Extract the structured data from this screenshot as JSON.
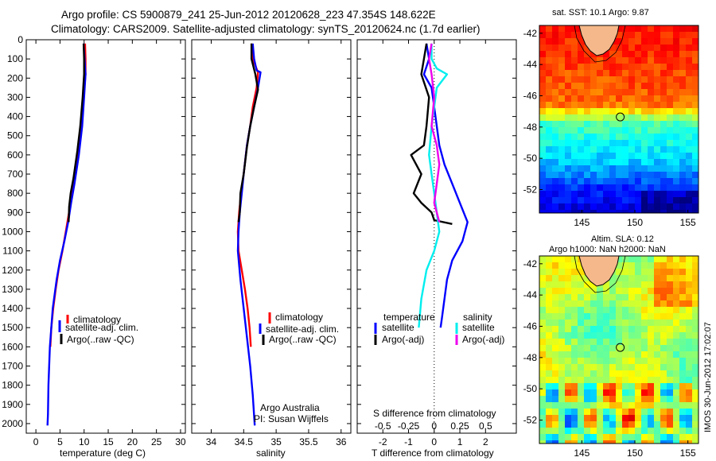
{
  "header": {
    "line1": "Argo profile: CS 5900879_241 25-Jun-2012 20120628_223 47.354S 148.622E",
    "line2": "Climatology: CARS2009. Satellite-adjusted climatology: synTS_20120624.nc (1.7d earlier)"
  },
  "legend_labels": {
    "climatology": "climatology",
    "satellite_adj": "satellite-adj. clim.",
    "argo_raw": "Argo(..raw -QC)",
    "temperature": "temperature",
    "salinity": "salinity",
    "satellite": "satellite",
    "argo_adj": "Argo(-adj)"
  },
  "credits": {
    "line1": "Argo Australia",
    "line2": "PI: Susan Wijffels"
  },
  "map_titles": {
    "sst": "sat. SST: 10.1 Argo: 9.87",
    "sla_line1": "Altim. SLA: 0.12",
    "sla_line2": "Argo h1000: NaN h2000: NaN"
  },
  "timestamp": "IMOS 30-Jun-2012 17:02:07",
  "colors": {
    "climatology": "#ff0000",
    "satellite": "#0000ff",
    "argo": "#000000",
    "sal_satellite": "#00eeee",
    "sal_argo": "#ee00ee",
    "land": "#f5b88a"
  },
  "chart_data": [
    {
      "type": "line",
      "xlabel": "temperature (deg C)",
      "xlim": [
        -2,
        31
      ],
      "ylim": [
        2050,
        0
      ],
      "y_reversed": true,
      "xticks": [
        0,
        5,
        10,
        15,
        20,
        25,
        30
      ],
      "yticks": [
        0,
        100,
        200,
        300,
        400,
        500,
        600,
        700,
        800,
        900,
        1000,
        1100,
        1200,
        1300,
        1400,
        1500,
        1600,
        1700,
        1800,
        1900,
        2000
      ],
      "legend_placement": "lower-right",
      "series": [
        {
          "name": "climatology",
          "color": "#ff0000",
          "points": [
            [
              10.2,
              20
            ],
            [
              10.3,
              100
            ],
            [
              10.3,
              180
            ],
            [
              9.9,
              300
            ],
            [
              9.4,
              450
            ],
            [
              8.7,
              600
            ],
            [
              7.9,
              750
            ],
            [
              7.2,
              850
            ],
            [
              6.2,
              1000
            ],
            [
              5.5,
              1100
            ],
            [
              4.7,
              1200
            ],
            [
              4.1,
              1300
            ],
            [
              3.6,
              1400
            ],
            [
              3.2,
              1500
            ],
            [
              3.0,
              1600
            ]
          ]
        },
        {
          "name": "satellite-adj. clim.",
          "color": "#0000ff",
          "points": [
            [
              9.9,
              20
            ],
            [
              10.1,
              100
            ],
            [
              10.3,
              180
            ],
            [
              10.0,
              300
            ],
            [
              9.6,
              450
            ],
            [
              8.9,
              600
            ],
            [
              8.0,
              750
            ],
            [
              7.3,
              850
            ],
            [
              6.7,
              950
            ],
            [
              5.9,
              1050
            ],
            [
              5.0,
              1150
            ],
            [
              4.3,
              1250
            ],
            [
              3.5,
              1400
            ],
            [
              2.9,
              1600
            ],
            [
              2.6,
              1800
            ],
            [
              2.5,
              1950
            ],
            [
              2.4,
              2010
            ]
          ]
        },
        {
          "name": "Argo(..raw -QC)",
          "color": "#000000",
          "points": [
            [
              9.9,
              20
            ],
            [
              10.0,
              100
            ],
            [
              10.0,
              180
            ],
            [
              9.7,
              300
            ],
            [
              9.2,
              450
            ],
            [
              8.6,
              580
            ],
            [
              7.8,
              720
            ],
            [
              7.5,
              760
            ],
            [
              7.2,
              800
            ],
            [
              6.9,
              870
            ],
            [
              6.8,
              950
            ]
          ]
        }
      ]
    },
    {
      "type": "line",
      "xlabel": "salinity",
      "xlim": [
        33.7,
        36.15
      ],
      "ylim": [
        2050,
        0
      ],
      "y_reversed": true,
      "xticks": [
        34,
        34.5,
        35,
        35.5,
        36
      ],
      "legend_placement": "lower-right",
      "series": [
        {
          "name": "climatology",
          "color": "#ff0000",
          "points": [
            [
              34.62,
              20
            ],
            [
              34.64,
              100
            ],
            [
              34.72,
              170
            ],
            [
              34.7,
              250
            ],
            [
              34.64,
              350
            ],
            [
              34.6,
              450
            ],
            [
              34.55,
              550
            ],
            [
              34.5,
              700
            ],
            [
              34.46,
              800
            ],
            [
              34.43,
              900
            ],
            [
              34.41,
              1000
            ],
            [
              34.42,
              1100
            ],
            [
              34.47,
              1200
            ],
            [
              34.52,
              1300
            ],
            [
              34.56,
              1400
            ],
            [
              34.59,
              1500
            ],
            [
              34.61,
              1600
            ]
          ]
        },
        {
          "name": "satellite-adj. clim.",
          "color": "#0000ff",
          "points": [
            [
              34.64,
              20
            ],
            [
              34.66,
              100
            ],
            [
              34.7,
              160
            ],
            [
              34.76,
              170
            ],
            [
              34.72,
              250
            ],
            [
              34.66,
              350
            ],
            [
              34.6,
              450
            ],
            [
              34.55,
              550
            ],
            [
              34.5,
              700
            ],
            [
              34.47,
              800
            ],
            [
              34.44,
              900
            ],
            [
              34.42,
              1000
            ],
            [
              34.41,
              1100
            ],
            [
              34.45,
              1250
            ],
            [
              34.5,
              1400
            ],
            [
              34.55,
              1550
            ],
            [
              34.6,
              1700
            ],
            [
              34.64,
              1850
            ],
            [
              34.67,
              2010
            ]
          ]
        },
        {
          "name": "Argo(..raw -QC)",
          "color": "#000000",
          "points": [
            [
              34.62,
              20
            ],
            [
              34.62,
              100
            ],
            [
              34.68,
              180
            ],
            [
              34.72,
              260
            ],
            [
              34.66,
              350
            ],
            [
              34.6,
              450
            ],
            [
              34.55,
              560
            ],
            [
              34.5,
              700
            ],
            [
              34.45,
              800
            ],
            [
              34.44,
              900
            ],
            [
              34.42,
              950
            ]
          ]
        }
      ]
    },
    {
      "type": "line",
      "xlabel": "T difference from climatology",
      "xlabel2": "S difference from climatology",
      "xlim": [
        -3,
        3.2
      ],
      "ylim": [
        2050,
        0
      ],
      "y_reversed": true,
      "xticks": [
        -2,
        -1,
        0,
        1,
        2
      ],
      "xticks_s_positions": [
        -2,
        -1,
        0,
        1,
        2
      ],
      "xticks_s_labels": [
        "-0.5",
        "-0.25",
        "0",
        "0.25",
        "0.5"
      ],
      "zero_line": "dotted",
      "legend_placement": "lower-right",
      "series": [
        {
          "name": "temperature satellite",
          "color": "#0000ff",
          "points": [
            [
              -0.3,
              20
            ],
            [
              -0.2,
              100
            ],
            [
              -0.4,
              180
            ],
            [
              -0.1,
              250
            ],
            [
              0.0,
              350
            ],
            [
              0.1,
              450
            ],
            [
              0.2,
              550
            ],
            [
              0.4,
              650
            ],
            [
              0.7,
              750
            ],
            [
              1.0,
              850
            ],
            [
              1.3,
              950
            ],
            [
              1.1,
              1050
            ],
            [
              0.7,
              1150
            ],
            [
              0.5,
              1250
            ],
            [
              0.4,
              1350
            ],
            [
              0.3,
              1450
            ],
            [
              0.25,
              1500
            ]
          ]
        },
        {
          "name": "temperature Argo(-adj)",
          "color": "#000000",
          "points": [
            [
              -0.3,
              20
            ],
            [
              -0.4,
              100
            ],
            [
              -0.5,
              180
            ],
            [
              -0.2,
              300
            ],
            [
              -0.3,
              450
            ],
            [
              -0.4,
              550
            ],
            [
              -0.9,
              600
            ],
            [
              -0.5,
              700
            ],
            [
              -0.8,
              800
            ],
            [
              -0.5,
              850
            ],
            [
              -0.1,
              900
            ],
            [
              0.0,
              940
            ],
            [
              0.7,
              960
            ]
          ]
        },
        {
          "name": "salinity satellite",
          "color": "#00eeee",
          "points": [
            [
              -0.1,
              20
            ],
            [
              -0.1,
              100
            ],
            [
              0.1,
              150
            ],
            [
              0.5,
              180
            ],
            [
              0.1,
              250
            ],
            [
              0.0,
              350
            ],
            [
              -0.1,
              450
            ],
            [
              -0.2,
              600
            ],
            [
              -0.1,
              700
            ],
            [
              0.0,
              800
            ],
            [
              0.1,
              900
            ],
            [
              0.2,
              1000
            ],
            [
              0.0,
              1100
            ],
            [
              -0.3,
              1200
            ],
            [
              -0.5,
              1350
            ],
            [
              -0.6,
              1500
            ]
          ]
        },
        {
          "name": "salinity Argo(-adj)",
          "color": "#ee00ee",
          "points": [
            [
              -0.1,
              20
            ],
            [
              -0.2,
              100
            ],
            [
              -0.1,
              180
            ],
            [
              0.0,
              300
            ],
            [
              -0.1,
              450
            ],
            [
              0.1,
              550
            ],
            [
              0.2,
              650
            ],
            [
              0.1,
              750
            ],
            [
              0.0,
              850
            ],
            [
              0.2,
              950
            ]
          ]
        }
      ]
    },
    {
      "type": "heatmap",
      "title": "sat. SST: 10.1 Argo: 9.87",
      "xlim": [
        141,
        156
      ],
      "ylim": [
        -53.5,
        -41.5
      ],
      "xticks": [
        145,
        150,
        155
      ],
      "yticks": [
        -42,
        -44,
        -46,
        -48,
        -50,
        -52
      ],
      "argo_position": [
        148.622,
        -47.354
      ],
      "colormap": "jet"
    },
    {
      "type": "heatmap",
      "title": "Altim. SLA: 0.12 / Argo h1000: NaN h2000: NaN",
      "xlim": [
        141,
        156
      ],
      "ylim": [
        -53.5,
        -41.5
      ],
      "xticks": [
        145,
        150,
        155
      ],
      "yticks": [
        -42,
        -44,
        -46,
        -48,
        -50,
        -52
      ],
      "argo_position": [
        148.622,
        -47.354
      ],
      "colormap": "jet"
    }
  ]
}
